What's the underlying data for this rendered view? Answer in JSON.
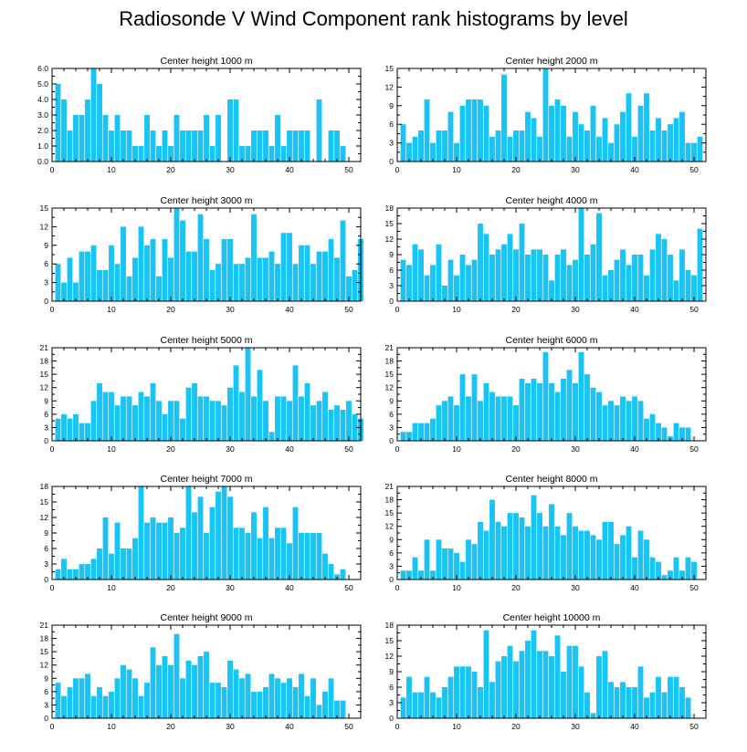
{
  "title": "Radiosonde V Wind Component rank histograms by level",
  "bar_color": "#18c3f6",
  "chart_data": [
    {
      "type": "bar",
      "title": "Center height 1000 m",
      "xlim": [
        0,
        52
      ],
      "ylim": [
        0,
        6
      ],
      "xticks": [
        0,
        10,
        20,
        30,
        40,
        50
      ],
      "yticks": [
        0,
        1,
        2,
        3,
        4,
        5,
        6
      ],
      "ytick_labels": [
        "0.0",
        "1.0",
        "2.0",
        "3.0",
        "4.0",
        "5.0",
        "6.0"
      ],
      "values": [
        5,
        4,
        2,
        3,
        3,
        4,
        6,
        5,
        3,
        2,
        3,
        2,
        2,
        1,
        1,
        3,
        2,
        1,
        2,
        1,
        3,
        2,
        2,
        2,
        2,
        3,
        1,
        3,
        0,
        4,
        4,
        1,
        1,
        2,
        2,
        2,
        1,
        3,
        1,
        2,
        2,
        2,
        2,
        0,
        4,
        0,
        2,
        2,
        1,
        0,
        0
      ]
    },
    {
      "type": "bar",
      "title": "Center height 2000 m",
      "xlim": [
        0,
        52
      ],
      "ylim": [
        0,
        15
      ],
      "xticks": [
        0,
        10,
        20,
        30,
        40,
        50
      ],
      "yticks": [
        0,
        3,
        6,
        9,
        12,
        15
      ],
      "ytick_labels": [
        "0",
        "3",
        "6",
        "9",
        "12",
        "15"
      ],
      "values": [
        6,
        3,
        4,
        5,
        10,
        3,
        5,
        5,
        8,
        3,
        9,
        10,
        10,
        10,
        9,
        4,
        5,
        14,
        4,
        5,
        5,
        8,
        7,
        4,
        15,
        9,
        10,
        9,
        4,
        8,
        6,
        5,
        9,
        4,
        7,
        3,
        6,
        8,
        11,
        4,
        9,
        11,
        5,
        7,
        5,
        6,
        7,
        8,
        3,
        3,
        4
      ]
    },
    {
      "type": "bar",
      "title": "Center height 3000 m",
      "xlim": [
        0,
        52
      ],
      "ylim": [
        0,
        15
      ],
      "xticks": [
        0,
        10,
        20,
        30,
        40,
        50
      ],
      "yticks": [
        0,
        3,
        6,
        9,
        12,
        15
      ],
      "ytick_labels": [
        "0",
        "3",
        "6",
        "9",
        "12",
        "15"
      ],
      "values": [
        6,
        3,
        7,
        3,
        8,
        8,
        9,
        5,
        5,
        9,
        6,
        12,
        4,
        7,
        12,
        9,
        10,
        4,
        10,
        7,
        15,
        13,
        8,
        8,
        14,
        10,
        5,
        6,
        10,
        10,
        6,
        6,
        7,
        14,
        7,
        7,
        8,
        6,
        11,
        11,
        6,
        9,
        9,
        6,
        8,
        8,
        10,
        7,
        13,
        4,
        5,
        10
      ]
    },
    {
      "type": "bar",
      "title": "Center height 4000 m",
      "xlim": [
        0,
        52
      ],
      "ylim": [
        0,
        18
      ],
      "xticks": [
        0,
        10,
        20,
        30,
        40,
        50
      ],
      "yticks": [
        0,
        3,
        6,
        9,
        12,
        15,
        18
      ],
      "ytick_labels": [
        "0",
        "3",
        "6",
        "9",
        "12",
        "15",
        "18"
      ],
      "values": [
        8,
        7,
        11,
        10,
        5,
        7,
        11,
        3,
        8,
        5,
        9,
        7,
        8,
        15,
        13,
        9,
        10,
        11,
        13,
        10,
        15,
        9,
        10,
        10,
        9,
        4,
        9,
        10,
        7,
        8,
        18,
        9,
        11,
        17,
        5,
        6,
        8,
        10,
        7,
        9,
        9,
        5,
        10,
        13,
        12,
        9,
        4,
        10,
        6,
        5,
        14
      ]
    },
    {
      "type": "bar",
      "title": "Center height 5000 m",
      "xlim": [
        0,
        52
      ],
      "ylim": [
        0,
        21
      ],
      "xticks": [
        0,
        10,
        20,
        30,
        40,
        50
      ],
      "yticks": [
        0,
        3,
        6,
        9,
        12,
        15,
        18,
        21
      ],
      "ytick_labels": [
        "0",
        "3",
        "6",
        "9",
        "12",
        "15",
        "18",
        "21"
      ],
      "values": [
        5,
        6,
        5,
        6,
        4,
        4,
        9,
        13,
        11,
        11,
        8,
        10,
        10,
        8,
        11,
        10,
        13,
        9,
        6,
        9,
        9,
        5,
        12,
        13,
        10,
        10,
        9,
        9,
        8,
        12,
        17,
        11,
        21,
        10,
        16,
        9,
        2,
        10,
        10,
        9,
        17,
        10,
        13,
        8,
        9,
        11,
        7,
        8,
        7,
        9,
        6,
        5
      ]
    },
    {
      "type": "bar",
      "title": "Center height 6000 m",
      "xlim": [
        0,
        52
      ],
      "ylim": [
        0,
        21
      ],
      "xticks": [
        0,
        10,
        20,
        30,
        40,
        50
      ],
      "yticks": [
        0,
        3,
        6,
        9,
        12,
        15,
        18,
        21
      ],
      "ytick_labels": [
        "0",
        "3",
        "6",
        "9",
        "12",
        "15",
        "18",
        "21"
      ],
      "values": [
        2,
        2,
        4,
        4,
        4,
        5,
        8,
        9,
        10,
        8,
        15,
        10,
        15,
        9,
        13,
        11,
        10,
        10,
        10,
        8,
        14,
        13,
        14,
        13,
        20,
        13,
        11,
        14,
        16,
        13,
        20,
        15,
        12,
        11,
        8,
        9,
        8,
        10,
        9,
        10,
        9,
        5,
        6,
        4,
        3,
        1,
        4,
        3,
        3
      ]
    },
    {
      "type": "bar",
      "title": "Center height 7000 m",
      "xlim": [
        0,
        52
      ],
      "ylim": [
        0,
        18
      ],
      "xticks": [
        0,
        10,
        20,
        30,
        40,
        50
      ],
      "yticks": [
        0,
        3,
        6,
        9,
        12,
        15,
        18
      ],
      "ytick_labels": [
        "0",
        "3",
        "6",
        "9",
        "12",
        "15",
        "18"
      ],
      "values": [
        2,
        4,
        2,
        2,
        3,
        3,
        4,
        6,
        12,
        5,
        11,
        6,
        6,
        8,
        18,
        11,
        12,
        11,
        11,
        12,
        9,
        10,
        18,
        13,
        16,
        9,
        14,
        17,
        18,
        16,
        10,
        10,
        9,
        13,
        8,
        14,
        8,
        10,
        10,
        7,
        14,
        9,
        9,
        9,
        9,
        5,
        3,
        1,
        2
      ]
    },
    {
      "type": "bar",
      "title": "Center height 8000 m",
      "xlim": [
        0,
        52
      ],
      "ylim": [
        0,
        21
      ],
      "xticks": [
        0,
        10,
        20,
        30,
        40,
        50
      ],
      "yticks": [
        0,
        3,
        6,
        9,
        12,
        15,
        18,
        21
      ],
      "ytick_labels": [
        "0",
        "3",
        "6",
        "9",
        "12",
        "15",
        "18",
        "21"
      ],
      "values": [
        2,
        2,
        5,
        2,
        9,
        2,
        9,
        7,
        7,
        6,
        4,
        9,
        8,
        13,
        11,
        18,
        13,
        12,
        15,
        15,
        14,
        12,
        19,
        15,
        12,
        17,
        12,
        10,
        15,
        12,
        11,
        11,
        10,
        9,
        13,
        13,
        8,
        10,
        12,
        5,
        11,
        9,
        5,
        4,
        1,
        2,
        5,
        2,
        5,
        4
      ]
    },
    {
      "type": "bar",
      "title": "Center height 9000 m",
      "xlim": [
        0,
        52
      ],
      "ylim": [
        0,
        21
      ],
      "xticks": [
        0,
        10,
        20,
        30,
        40,
        50
      ],
      "yticks": [
        0,
        3,
        6,
        9,
        12,
        15,
        18,
        21
      ],
      "ytick_labels": [
        "0",
        "3",
        "6",
        "9",
        "12",
        "15",
        "18",
        "21"
      ],
      "values": [
        8,
        5,
        7,
        9,
        9,
        10,
        5,
        7,
        5,
        6,
        9,
        12,
        11,
        9,
        5,
        8,
        16,
        12,
        14,
        12,
        19,
        9,
        13,
        12,
        14,
        15,
        8,
        8,
        7,
        13,
        11,
        9,
        10,
        6,
        6,
        7,
        10,
        9,
        8,
        9,
        7,
        10,
        5,
        9,
        3,
        6,
        9,
        4,
        4
      ]
    },
    {
      "type": "bar",
      "title": "Center height 10000 m",
      "xlim": [
        0,
        52
      ],
      "ylim": [
        0,
        18
      ],
      "xticks": [
        0,
        10,
        20,
        30,
        40,
        50
      ],
      "yticks": [
        0,
        3,
        6,
        9,
        12,
        15,
        18
      ],
      "ytick_labels": [
        "0",
        "3",
        "6",
        "9",
        "12",
        "15",
        "18"
      ],
      "values": [
        4,
        8,
        5,
        5,
        8,
        5,
        4,
        6,
        8,
        10,
        10,
        10,
        9,
        6,
        17,
        7,
        11,
        12,
        14,
        11,
        13,
        15,
        17,
        13,
        13,
        12,
        16,
        9,
        14,
        14,
        10,
        5,
        1,
        12,
        13,
        7,
        6,
        7,
        6,
        6,
        10,
        4,
        5,
        8,
        5,
        8,
        8,
        6,
        4
      ]
    }
  ]
}
